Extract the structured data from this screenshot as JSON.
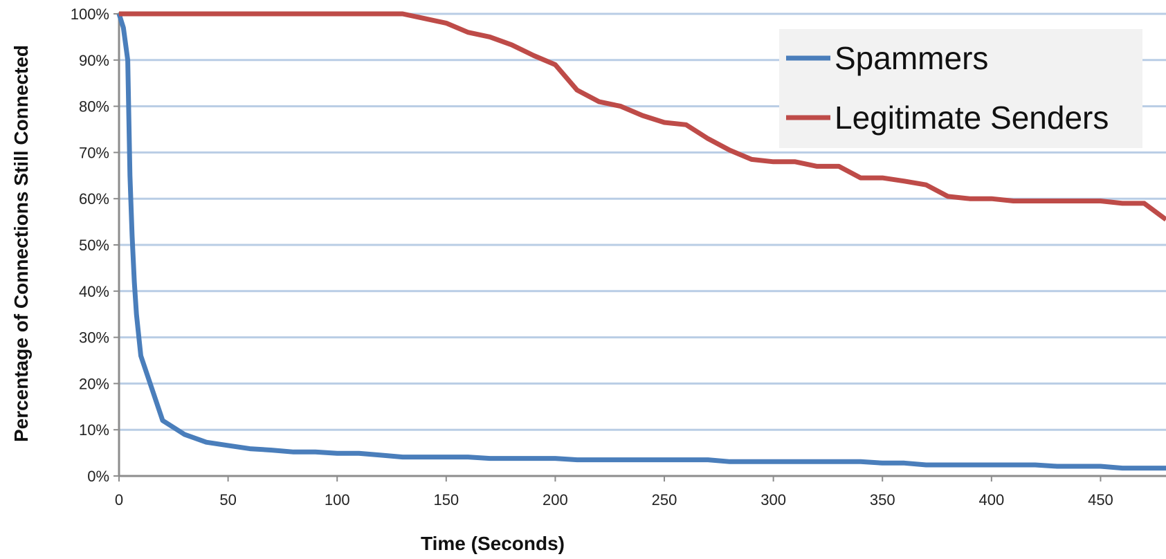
{
  "chart_data": {
    "type": "line",
    "title": "",
    "xlabel": "Time (Seconds)",
    "ylabel": "Percentage of Connections Still Connected",
    "xlim": [
      0,
      480
    ],
    "ylim": [
      0,
      100
    ],
    "x_ticks": [
      0,
      50,
      100,
      150,
      200,
      250,
      300,
      350,
      400,
      450
    ],
    "x_tick_labels": [
      "0",
      "50",
      "100",
      "150",
      "200",
      "250",
      "300",
      "350",
      "400",
      "450"
    ],
    "y_ticks": [
      0,
      10,
      20,
      30,
      40,
      50,
      60,
      70,
      80,
      90,
      100
    ],
    "y_tick_labels": [
      "0%",
      "10%",
      "20%",
      "30%",
      "40%",
      "50%",
      "60%",
      "70%",
      "80%",
      "90%",
      "100%"
    ],
    "grid": true,
    "legend_position": "top-right",
    "series": [
      {
        "name": "Spammers",
        "color": "#4a7ebb",
        "x": [
          0,
          2,
          4,
          5,
          6,
          7,
          8,
          10,
          20,
          30,
          40,
          50,
          60,
          70,
          80,
          90,
          100,
          110,
          120,
          130,
          140,
          150,
          160,
          170,
          180,
          190,
          200,
          210,
          220,
          230,
          240,
          250,
          260,
          270,
          280,
          290,
          300,
          310,
          320,
          330,
          340,
          350,
          360,
          370,
          380,
          390,
          400,
          410,
          420,
          430,
          440,
          450,
          460,
          470,
          480
        ],
        "y": [
          100,
          97,
          90,
          65,
          52,
          42,
          35,
          26,
          12,
          9,
          7.3,
          6.6,
          5.9,
          5.6,
          5.2,
          5.2,
          4.9,
          4.9,
          4.5,
          4.1,
          4.1,
          4.1,
          4.1,
          3.8,
          3.8,
          3.8,
          3.8,
          3.5,
          3.5,
          3.5,
          3.5,
          3.5,
          3.5,
          3.5,
          3.1,
          3.1,
          3.1,
          3.1,
          3.1,
          3.1,
          3.1,
          2.8,
          2.8,
          2.4,
          2.4,
          2.4,
          2.4,
          2.4,
          2.4,
          2.1,
          2.1,
          2.1,
          1.7,
          1.7,
          1.7
        ]
      },
      {
        "name": "Legitimate Senders",
        "color": "#be4b48",
        "x": [
          0,
          130,
          140,
          150,
          160,
          170,
          180,
          190,
          200,
          210,
          220,
          230,
          240,
          250,
          260,
          270,
          280,
          290,
          300,
          310,
          320,
          330,
          340,
          350,
          360,
          370,
          380,
          390,
          400,
          410,
          420,
          430,
          440,
          450,
          460,
          470,
          480
        ],
        "y": [
          100,
          100,
          99,
          98,
          96,
          95,
          93.3,
          91,
          89,
          83.5,
          81,
          80,
          78,
          76.5,
          76,
          73,
          70.5,
          68.5,
          68,
          68,
          67,
          67,
          64.5,
          64.5,
          63.8,
          63,
          60.5,
          60,
          60,
          59.5,
          59.5,
          59.5,
          59.5,
          59.5,
          59,
          59,
          55.5
        ]
      }
    ]
  }
}
